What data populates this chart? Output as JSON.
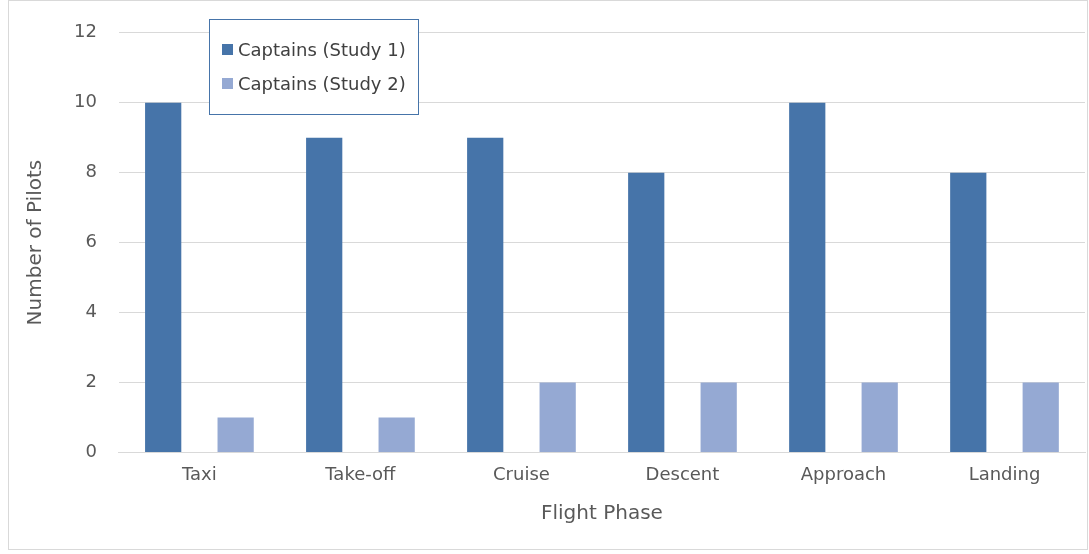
{
  "chart_data": {
    "type": "bar",
    "xlabel": "Flight Phase",
    "ylabel": "Number of Pilots",
    "categories": [
      "Taxi",
      "Take-off",
      "Cruise",
      "Descent",
      "Approach",
      "Landing"
    ],
    "series": [
      {
        "name": "Captains (Study 1)",
        "color": "#4674a9",
        "values": [
          10,
          9,
          9,
          8,
          10,
          8
        ]
      },
      {
        "name": "Captains (Study 2)",
        "color": "#95a9d3",
        "values": [
          1,
          1,
          2,
          2,
          2,
          2
        ]
      }
    ],
    "ylim": [
      0,
      12
    ],
    "yticks": [
      0,
      2,
      4,
      6,
      8,
      10,
      12
    ],
    "grid": "y",
    "legend": "top left"
  }
}
